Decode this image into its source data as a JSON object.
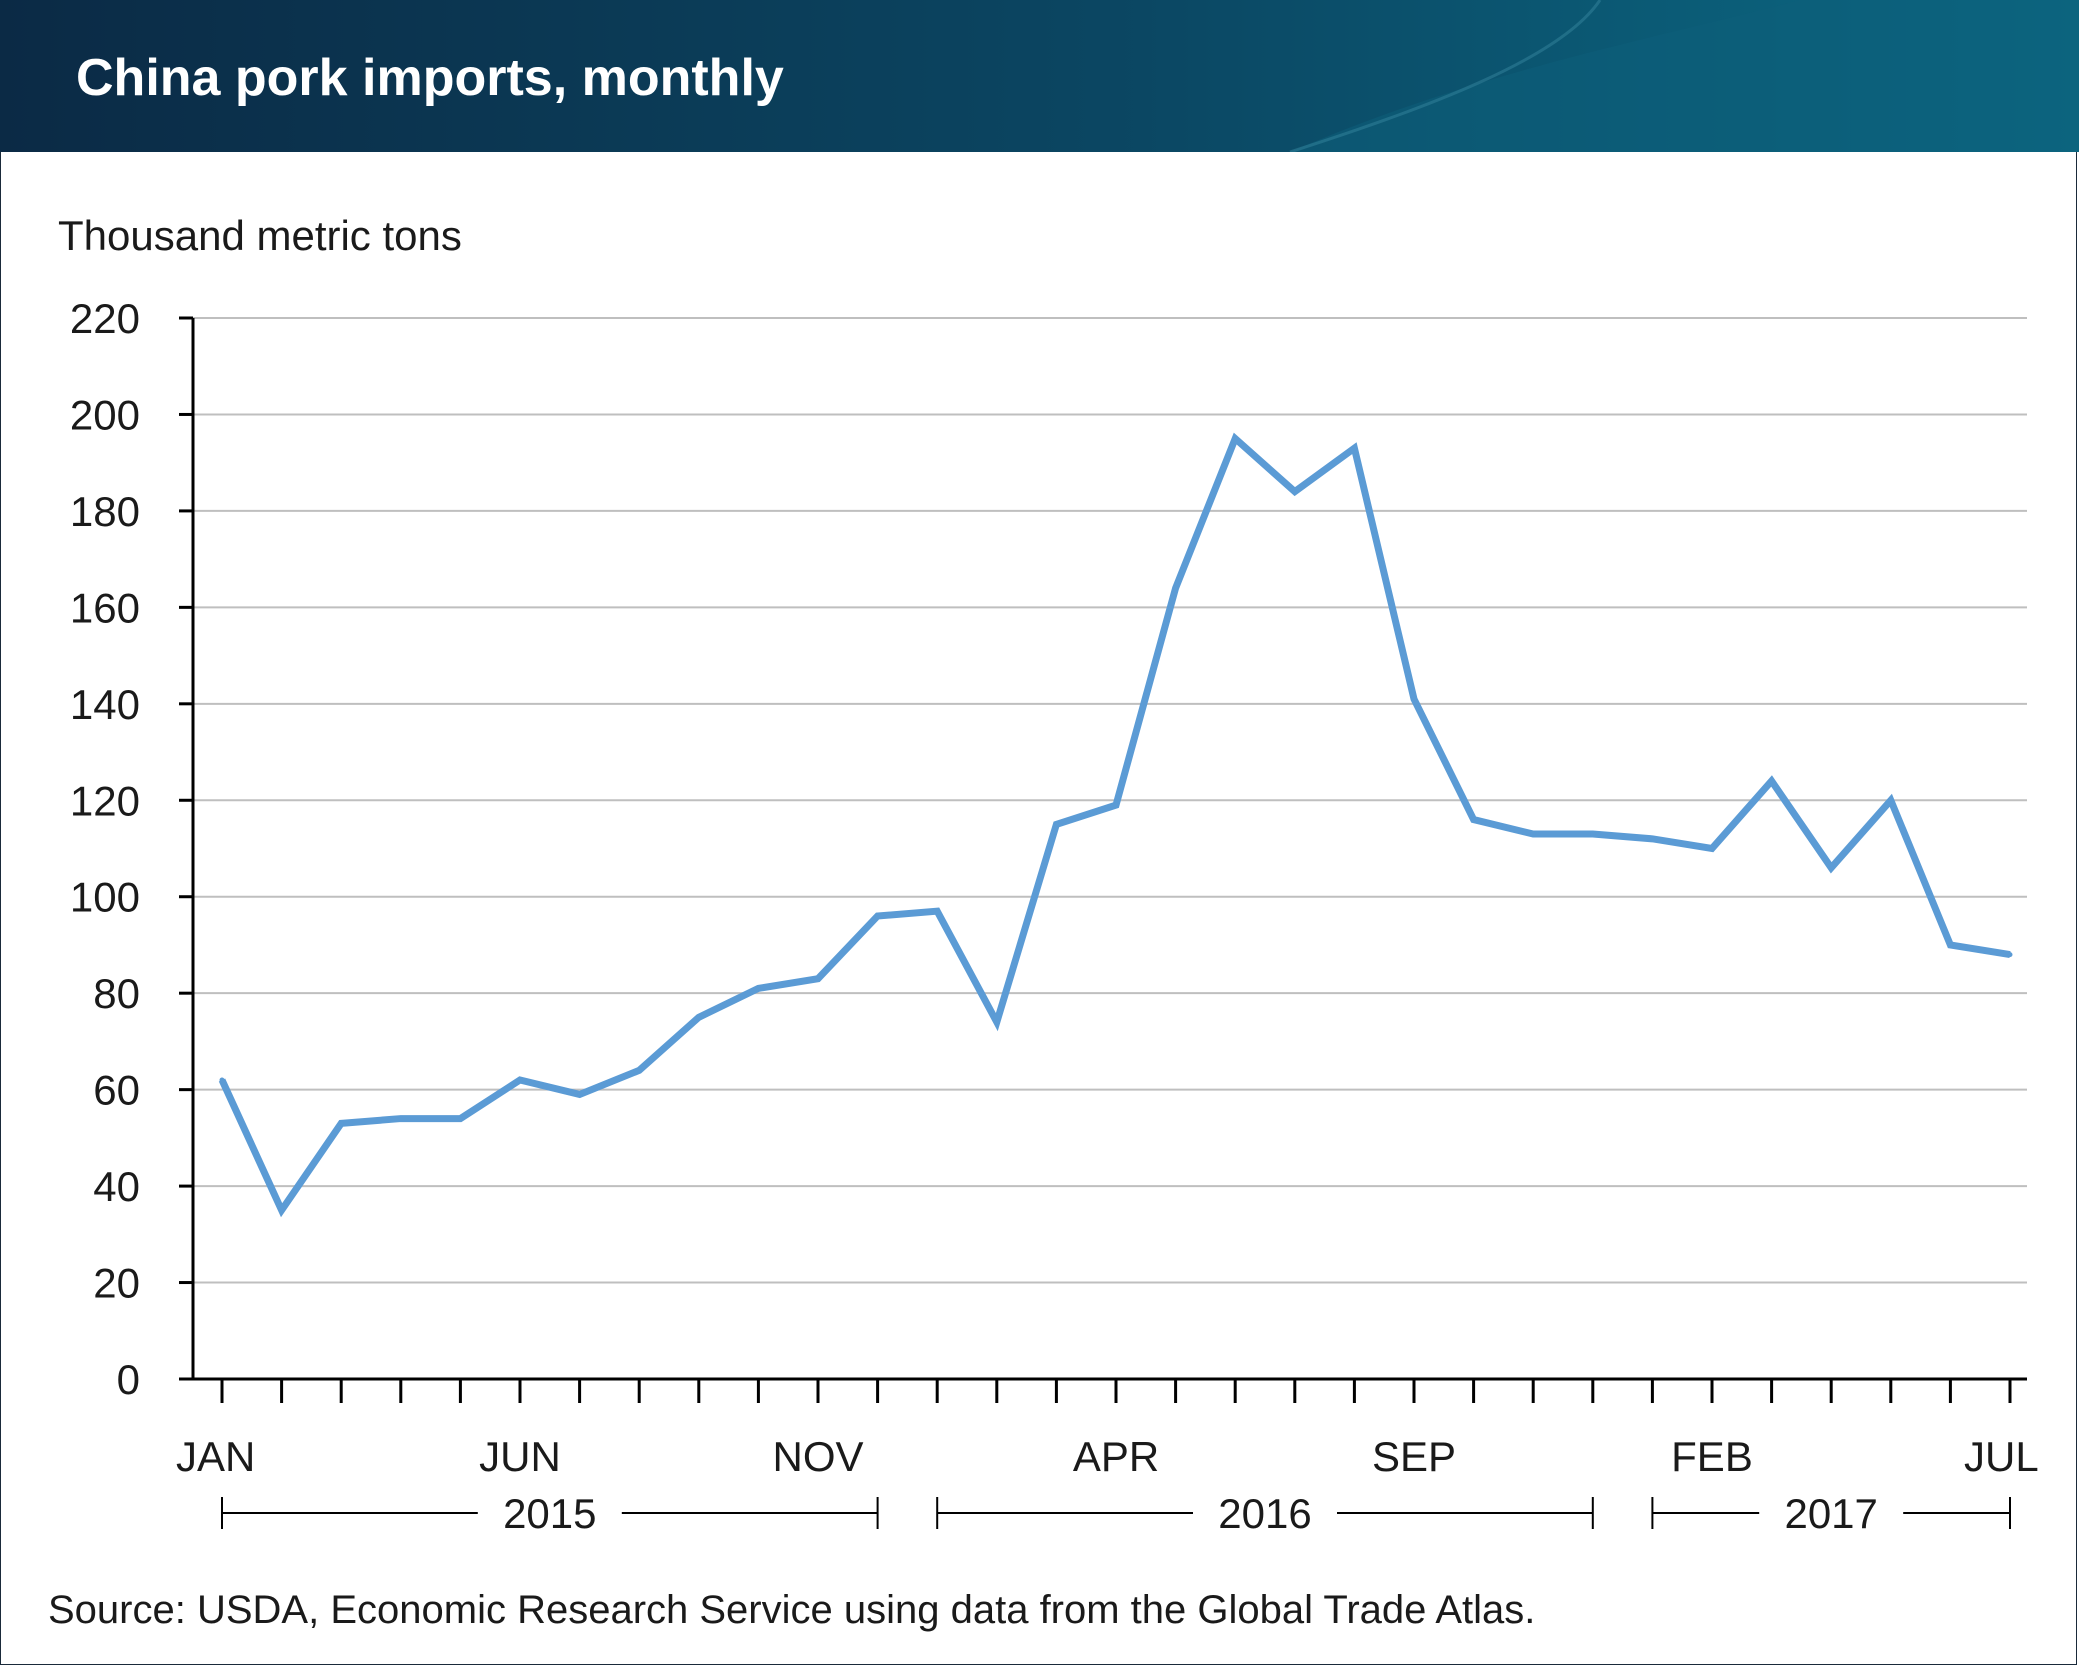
{
  "title": "China pork imports, monthly",
  "source": "Source: USDA, Economic Research Service using data from the Global Trade Atlas.",
  "colors": {
    "banner_dark": "#0b2a45",
    "banner_light": "#0b6a84",
    "line": "#5b9bd5",
    "grid": "#bfbfbf",
    "axis": "#000000"
  },
  "chart_data": {
    "type": "line",
    "ylabel": "Thousand metric tons",
    "ylim": [
      0,
      220
    ],
    "yticks": [
      "0",
      "20",
      "40",
      "60",
      "80",
      "100",
      "120",
      "140",
      "160",
      "180",
      "200",
      "220"
    ],
    "grid": true,
    "x": [
      "2015-01",
      "2015-02",
      "2015-03",
      "2015-04",
      "2015-05",
      "2015-06",
      "2015-07",
      "2015-08",
      "2015-09",
      "2015-10",
      "2015-11",
      "2015-12",
      "2016-01",
      "2016-02",
      "2016-03",
      "2016-04",
      "2016-05",
      "2016-06",
      "2016-07",
      "2016-08",
      "2016-09",
      "2016-10",
      "2016-11",
      "2016-12",
      "2017-01",
      "2017-02",
      "2017-03",
      "2017-04",
      "2017-05",
      "2017-06",
      "2017-07"
    ],
    "x_tick_labels": [
      {
        "month": "2015-01",
        "label": "JAN"
      },
      {
        "month": "2015-06",
        "label": "JUN"
      },
      {
        "month": "2015-11",
        "label": "NOV"
      },
      {
        "month": "2016-04",
        "label": "APR"
      },
      {
        "month": "2016-09",
        "label": "SEP"
      },
      {
        "month": "2017-02",
        "label": "FEB"
      },
      {
        "month": "2017-07",
        "label": "JUL"
      }
    ],
    "year_groups": [
      {
        "label": "2015",
        "start": "2015-01",
        "end": "2015-12"
      },
      {
        "label": "2016",
        "start": "2016-01",
        "end": "2016-12"
      },
      {
        "label": "2017",
        "start": "2017-01",
        "end": "2017-07"
      }
    ],
    "series": [
      {
        "values": [
          62,
          35,
          53,
          54,
          54,
          62,
          59,
          64,
          75,
          81,
          83,
          96,
          97,
          74,
          115,
          119,
          164,
          195,
          184,
          193,
          141,
          116,
          113,
          113,
          112,
          110,
          124,
          106,
          120,
          90,
          88
        ]
      }
    ]
  }
}
